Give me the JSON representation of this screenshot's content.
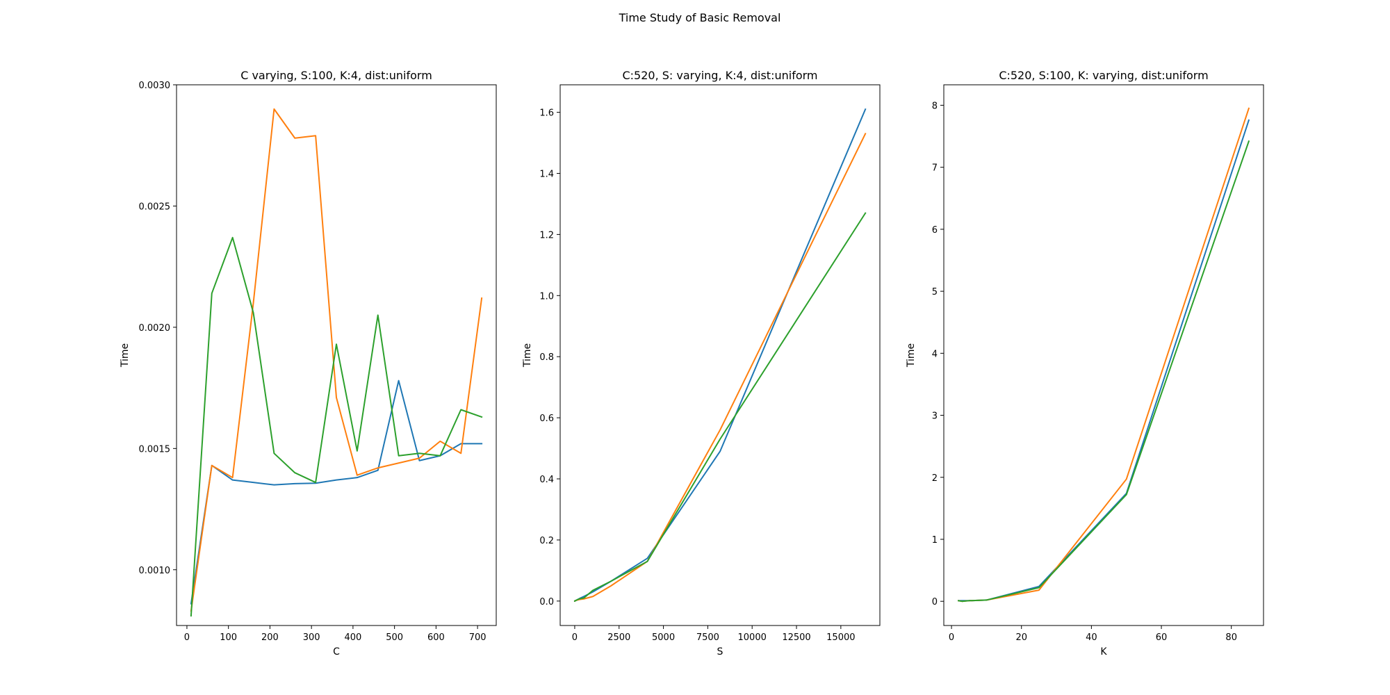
{
  "figure": {
    "title": "Time Study of Basic Removal"
  },
  "colors": {
    "series": [
      "#1f77b4",
      "#ff7f0e",
      "#2ca02c"
    ],
    "axes": "#000000",
    "background": "#ffffff"
  },
  "chart_data": [
    {
      "type": "line",
      "title": "C varying, S:100, K:4, dist:uniform",
      "xlabel": "C",
      "ylabel": "Time",
      "x": [
        10,
        60,
        110,
        160,
        210,
        260,
        310,
        360,
        410,
        460,
        510,
        560,
        610,
        660,
        710
      ],
      "xlim": [
        -25,
        745
      ],
      "ylim": [
        0.00077,
        0.003
      ],
      "xticks": [
        0,
        100,
        200,
        300,
        400,
        500,
        600,
        700
      ],
      "xtick_labels": [
        "0",
        "100",
        "200",
        "300",
        "400",
        "500",
        "600",
        "700"
      ],
      "yticks": [
        0.001,
        0.0015,
        0.002,
        0.0025,
        0.003
      ],
      "ytick_labels": [
        "0.0010",
        "0.0015",
        "0.0020",
        "0.0025",
        "0.0030"
      ],
      "grid": false,
      "series": [
        {
          "values": [
            0.00086,
            0.00143,
            0.00137,
            0.00136,
            0.00135,
            0.001355,
            0.001357,
            0.00137,
            0.00138,
            0.00141,
            0.00178,
            0.00145,
            0.00147,
            0.00152,
            0.00152
          ]
        },
        {
          "values": [
            0.00083,
            0.00143,
            0.00138,
            0.0021,
            0.0029,
            0.00278,
            0.00279,
            0.00171,
            0.00139,
            0.00142,
            0.00144,
            0.00146,
            0.00153,
            0.00148,
            0.00212
          ]
        },
        {
          "values": [
            0.00081,
            0.00214,
            0.00237,
            0.00206,
            0.00148,
            0.0014,
            0.00136,
            0.00193,
            0.00149,
            0.00205,
            0.00147,
            0.00148,
            0.00147,
            0.00166,
            0.00163
          ]
        }
      ]
    },
    {
      "type": "line",
      "title": "C:520, S: varying, K:4, dist:uniform",
      "xlabel": "S",
      "ylabel": "Time",
      "x": [
        1,
        2,
        4,
        8,
        16,
        32,
        64,
        128,
        256,
        512,
        1024,
        2048,
        4096,
        8192,
        16384
      ],
      "xlim": [
        -820,
        17200
      ],
      "ylim": [
        -0.08,
        1.69
      ],
      "xticks": [
        0,
        2500,
        5000,
        7500,
        10000,
        12500,
        15000
      ],
      "xtick_labels": [
        "0",
        "2500",
        "5000",
        "7500",
        "10000",
        "12500",
        "15000"
      ],
      "yticks": [
        0.0,
        0.2,
        0.4,
        0.6,
        0.8,
        1.0,
        1.2,
        1.4,
        1.6
      ],
      "ytick_labels": [
        "0.0",
        "0.2",
        "0.4",
        "0.6",
        "0.8",
        "1.0",
        "1.2",
        "1.4",
        "1.6"
      ],
      "grid": false,
      "series": [
        {
          "values": [
            0.0,
            0.0,
            0.0,
            0.0,
            0.0005,
            0.001,
            0.002,
            0.004,
            0.008,
            0.015,
            0.03,
            0.065,
            0.14,
            0.49,
            1.61
          ]
        },
        {
          "values": [
            0.0,
            0.0,
            0.0,
            0.0,
            0.0005,
            0.001,
            0.002,
            0.003,
            0.005,
            0.007,
            0.015,
            0.05,
            0.13,
            0.56,
            1.53
          ]
        },
        {
          "values": [
            0.0,
            0.0,
            0.0,
            0.0,
            0.0005,
            0.001,
            0.002,
            0.004,
            0.007,
            0.01,
            0.035,
            0.065,
            0.13,
            0.53,
            1.27
          ]
        }
      ]
    },
    {
      "type": "line",
      "title": "C:520, S:100, K: varying, dist:uniform",
      "xlabel": "K",
      "ylabel": "Time",
      "x": [
        2,
        3,
        5,
        10,
        25,
        50,
        85
      ],
      "xlim": [
        -2.2,
        89.2
      ],
      "ylim": [
        -0.39,
        8.33
      ],
      "xticks": [
        0,
        20,
        40,
        60,
        80
      ],
      "xtick_labels": [
        "0",
        "20",
        "40",
        "60",
        "80"
      ],
      "yticks": [
        0,
        1,
        2,
        3,
        4,
        5,
        6,
        7,
        8
      ],
      "ytick_labels": [
        "0",
        "1",
        "2",
        "3",
        "4",
        "5",
        "6",
        "7",
        "8"
      ],
      "grid": false,
      "series": [
        {
          "values": [
            0.01,
            0.01,
            0.01,
            0.02,
            0.24,
            1.74,
            7.76
          ]
        },
        {
          "values": [
            0.01,
            0.0,
            0.01,
            0.02,
            0.18,
            1.97,
            7.95
          ]
        },
        {
          "values": [
            0.01,
            0.0,
            0.01,
            0.02,
            0.22,
            1.72,
            7.42
          ]
        }
      ]
    }
  ]
}
